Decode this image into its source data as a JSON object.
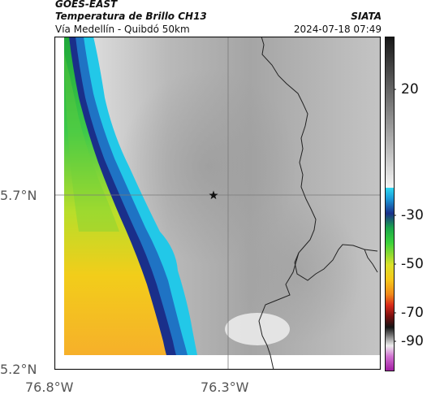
{
  "header": {
    "satellite": "GOES-EAST",
    "product": "Temperatura de Brillo CH13",
    "region": "Vía Medellín - Quibdó 50km",
    "agency": "SIATA",
    "timestamp": "2024-07-18 07:49"
  },
  "map": {
    "lat_labels": [
      "5.7°N",
      "5.2°N"
    ],
    "lon_labels": [
      "76.8°W",
      "76.3°W"
    ],
    "marker": "star-marker"
  },
  "colorbar": {
    "tick_labels": [
      "20",
      "-30",
      "-50",
      "-70",
      "-90"
    ],
    "colors": {
      "warm_gray_top": "#1a1a1a",
      "warm_gray_bottom": "#f2f2f2",
      "cyan": "#22d3ee",
      "blue": "#1e3a8a",
      "green": "#22c55e",
      "yellow": "#facc15",
      "orange": "#f59e0b",
      "red": "#dc2626",
      "magenta": "#c026d3"
    }
  }
}
